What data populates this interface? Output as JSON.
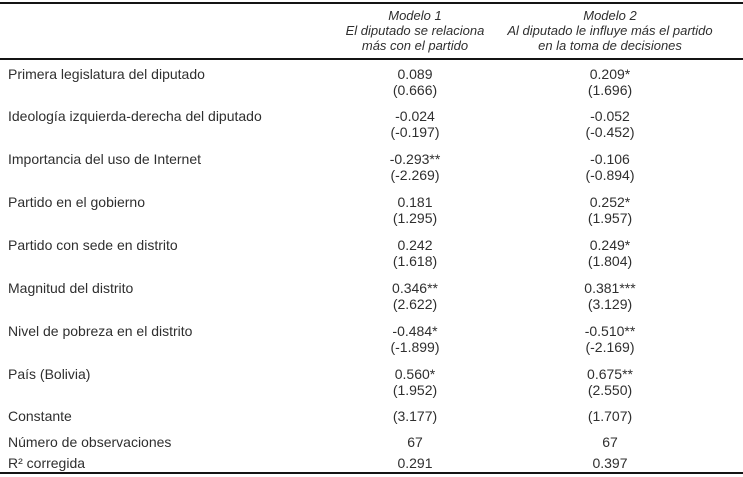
{
  "table": {
    "header": {
      "col1_title": "Modelo 1",
      "col1_subtitle": "El diputado se relaciona\nmás con el partido",
      "col2_title": "Modelo 2",
      "col2_subtitle": "Al diputado le influye más el partido\nen la toma de decisiones"
    },
    "rows": [
      {
        "label": "Primera legislatura del diputado",
        "m1_coef": "0.089",
        "m1_t": "(0.666)",
        "m2_coef": "0.209*",
        "m2_t": "(1.696)"
      },
      {
        "label": "Ideología izquierda-derecha del diputado",
        "m1_coef": "-0.024",
        "m1_t": "(-0.197)",
        "m2_coef": "-0.052",
        "m2_t": "(-0.452)"
      },
      {
        "label": "Importancia del uso de Internet",
        "m1_coef": "-0.293**",
        "m1_t": "(-2.269)",
        "m2_coef": "-0.106",
        "m2_t": "(-0.894)"
      },
      {
        "label": "Partido en el gobierno",
        "m1_coef": "0.181",
        "m1_t": "(1.295)",
        "m2_coef": "0.252*",
        "m2_t": "(1.957)"
      },
      {
        "label": "Partido con sede en distrito",
        "m1_coef": "0.242",
        "m1_t": "(1.618)",
        "m2_coef": "0.249*",
        "m2_t": "(1.804)"
      },
      {
        "label": "Magnitud del distrito",
        "m1_coef": "0.346**",
        "m1_t": "(2.622)",
        "m2_coef": "0.381***",
        "m2_t": "(3.129)"
      },
      {
        "label": "Nivel de pobreza en el distrito",
        "m1_coef": "-0.484*",
        "m1_t": "(-1.899)",
        "m2_coef": "-0.510**",
        "m2_t": "(-2.169)"
      },
      {
        "label": "País (Bolivia)",
        "m1_coef": "0.560*",
        "m1_t": "(1.952)",
        "m2_coef": "0.675**",
        "m2_t": "(2.550)"
      }
    ],
    "summary_rows": [
      {
        "label": "Constante",
        "m1": "(3.177)",
        "m2": "(1.707)"
      },
      {
        "label": "Número de observaciones",
        "m1": "67",
        "m2": "67"
      },
      {
        "label": "R² corregida",
        "m1": "0.291",
        "m2": "0.397"
      }
    ]
  }
}
